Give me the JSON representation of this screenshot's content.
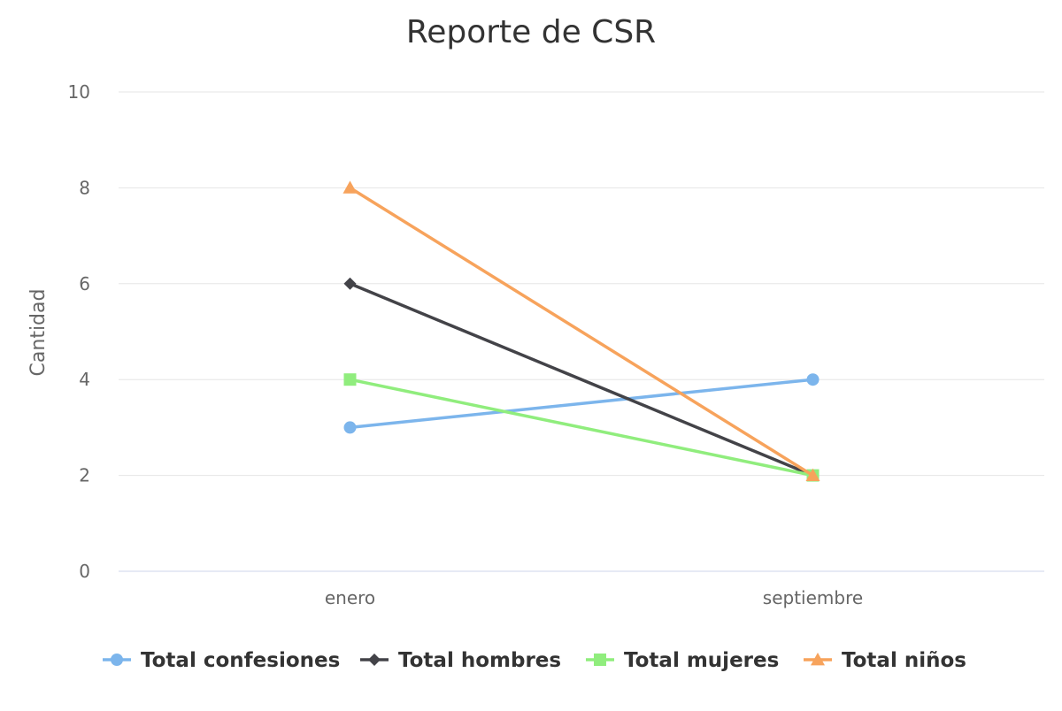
{
  "chart_data": {
    "type": "line",
    "title": "Reporte de CSR",
    "xlabel": "",
    "ylabel": "Cantidad",
    "categories": [
      "enero",
      "septiembre"
    ],
    "ylim": [
      0,
      10
    ],
    "yticks": [
      0,
      2,
      4,
      6,
      8,
      10
    ],
    "grid": true,
    "legend_position": "bottom",
    "series": [
      {
        "name": "Total confesiones",
        "values": [
          3,
          4
        ],
        "color": "#7cb5ec",
        "marker": "circle"
      },
      {
        "name": "Total hombres",
        "values": [
          6,
          2
        ],
        "color": "#434348",
        "marker": "diamond"
      },
      {
        "name": "Total mujeres",
        "values": [
          4,
          2
        ],
        "color": "#90ed7d",
        "marker": "square"
      },
      {
        "name": "Total niños",
        "values": [
          8,
          2
        ],
        "color": "#f7a35c",
        "marker": "triangle"
      }
    ]
  }
}
